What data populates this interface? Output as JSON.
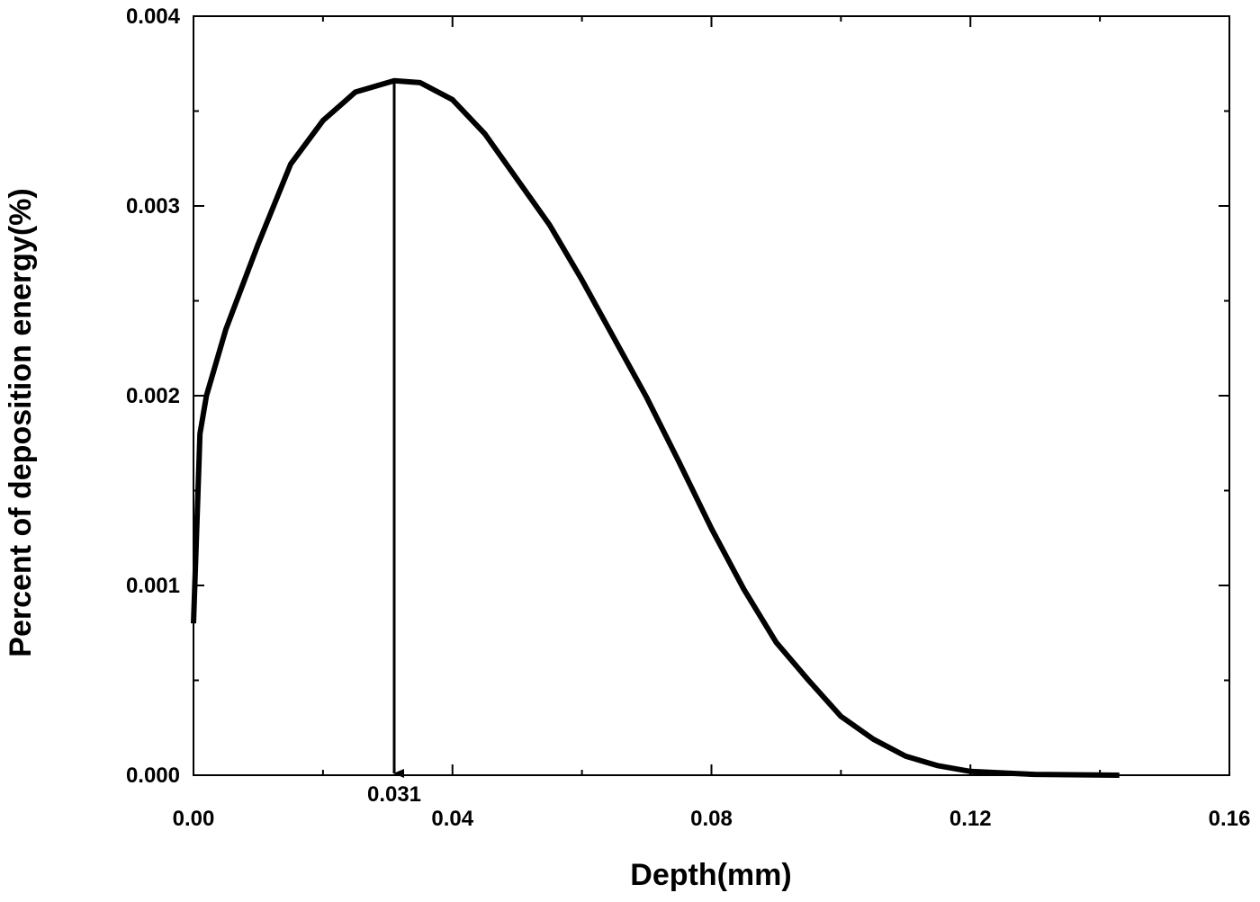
{
  "chart_data": {
    "type": "line",
    "x_label": "Depth(mm)",
    "y_label": "Percent of deposition energy(%)",
    "xlim": [
      0,
      0.16
    ],
    "ylim": [
      0,
      0.004
    ],
    "xticks": [
      {
        "value": 0,
        "label": "0.00"
      },
      0.04,
      0.08,
      0.12,
      0.16
    ],
    "yticks": [
      {
        "value": 0,
        "label": "0.000"
      },
      0.001,
      0.002,
      0.003,
      0.004
    ],
    "xminorticks": [
      0.02,
      0.06,
      0.1,
      0.14
    ],
    "yminorticks": [
      0.0005,
      0.0015,
      0.0025,
      0.0035
    ],
    "color": "#000000",
    "x": [
      0,
      0.001,
      0.002,
      0.005,
      0.01,
      0.015,
      0.02,
      0.025,
      0.031,
      0.035,
      0.04,
      0.045,
      0.05,
      0.055,
      0.06,
      0.065,
      0.07,
      0.075,
      0.08,
      0.085,
      0.09,
      0.095,
      0.1,
      0.105,
      0.11,
      0.115,
      0.12,
      0.13,
      0.143
    ],
    "values": [
      0.0008,
      0.0018,
      0.002,
      0.00235,
      0.0028,
      0.00322,
      0.00345,
      0.0036,
      0.00366,
      0.00365,
      0.00356,
      0.00338,
      0.00314,
      0.0029,
      0.00261,
      0.0023,
      0.00199,
      0.00165,
      0.0013,
      0.00098,
      0.0007,
      0.0005,
      0.00031,
      0.00019,
      0.0001,
      5e-05,
      2e-05,
      4e-06,
      0
    ],
    "annotation": {
      "label": "0.031",
      "x": 0.031,
      "y": 0.00366
    }
  }
}
